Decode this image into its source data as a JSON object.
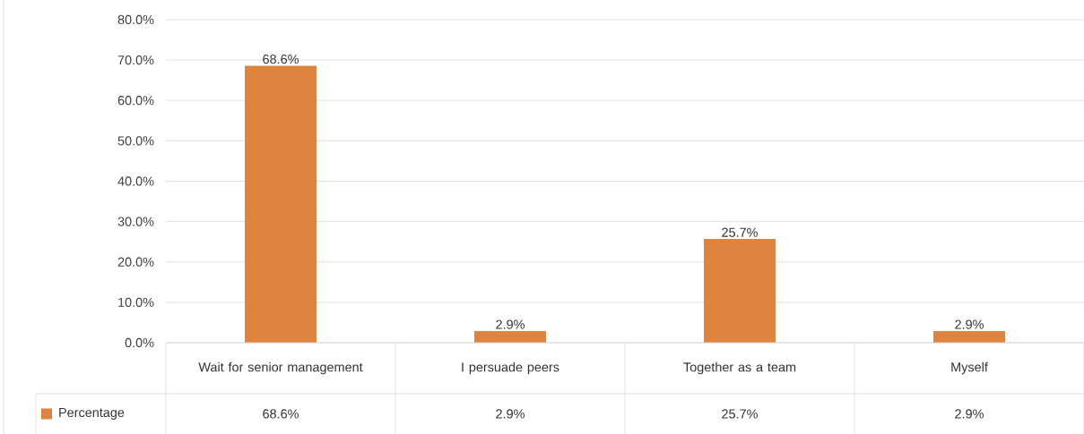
{
  "chart_data": {
    "type": "bar",
    "categories": [
      "Wait for senior management",
      "I persuade peers",
      "Together as a team",
      "Myself"
    ],
    "series": [
      {
        "name": "Percentage",
        "color": "#dd8540",
        "values": [
          68.6,
          2.9,
          25.7,
          2.9
        ],
        "value_labels": [
          "68.6%",
          "2.9%",
          "25.7%",
          "2.9%"
        ]
      }
    ],
    "ylim": [
      0,
      80
    ],
    "yticks": [
      {
        "value": 0,
        "label": "0.0%"
      },
      {
        "value": 10,
        "label": "10.0%"
      },
      {
        "value": 20,
        "label": "20.0%"
      },
      {
        "value": 30,
        "label": "30.0%"
      },
      {
        "value": 40,
        "label": "40.0%"
      },
      {
        "value": 50,
        "label": "50.0%"
      },
      {
        "value": 60,
        "label": "60.0%"
      },
      {
        "value": 70,
        "label": "70.0%"
      },
      {
        "value": 80,
        "label": "80.0%"
      }
    ],
    "grid": "y",
    "legend": "bottom"
  }
}
